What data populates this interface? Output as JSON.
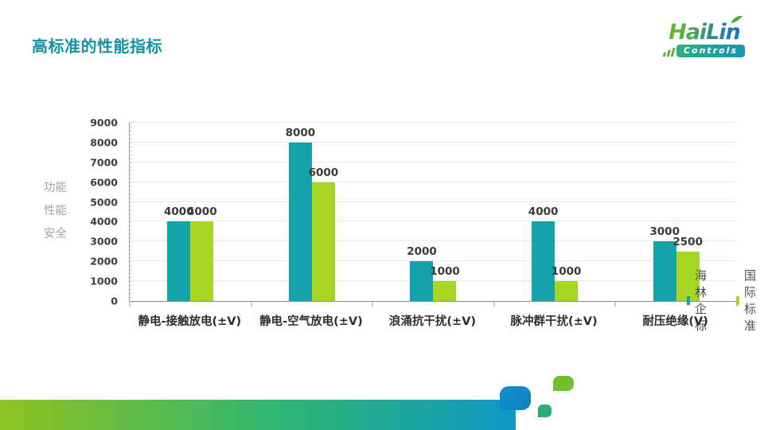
{
  "slide": {
    "title": "高标准的性能指标",
    "title_color": "#1193A4"
  },
  "logo": {
    "name": "HaiLin",
    "sub": "Controls",
    "name_gradient": [
      "#63BA2D",
      "#1C74BE"
    ],
    "badge_gradient": [
      "#2EAF7C",
      "#1495B6"
    ]
  },
  "chart_data": {
    "type": "bar",
    "categories": [
      "静电-接触放电(±V)",
      "静电-空气放电(±V)",
      "浪涌抗干扰(±V)",
      "脉冲群干扰(±V)",
      "耐压绝缘(V)"
    ],
    "series": [
      {
        "name": "海林企标",
        "color": "#14A2AB",
        "values": [
          4000,
          8000,
          2000,
          4000,
          3000
        ]
      },
      {
        "name": "国际标准",
        "color": "#A6D624",
        "values": [
          4000,
          6000,
          1000,
          1000,
          2500
        ]
      }
    ],
    "ylim": [
      0,
      9000
    ],
    "ytick_step": 1000,
    "yticks": [
      9000,
      8000,
      7000,
      6000,
      5000,
      4000,
      3000,
      2000,
      1000,
      0
    ],
    "ylabel_lines": [
      "功能",
      "性能",
      "安全"
    ],
    "xlabel": "",
    "grid": true,
    "data_labels": true,
    "legend_position": "top-right"
  },
  "decoration": {
    "bar_gradient": [
      "#8FC31F",
      "#2EB573",
      "#0D99C5"
    ],
    "blue_square": "#1489C8",
    "green_square": "#2BAC74",
    "leaf_square": "#6FBF2F"
  }
}
